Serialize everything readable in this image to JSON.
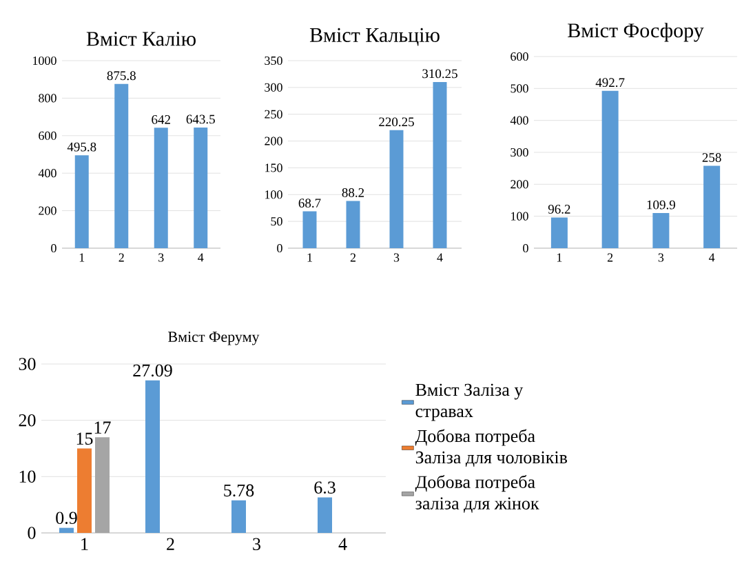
{
  "chart_data": [
    {
      "type": "bar",
      "title": "Вміст Калію",
      "categories": [
        "1",
        "2",
        "3",
        "4"
      ],
      "values": [
        495.8,
        875.8,
        642,
        643.5
      ],
      "color": "#5b9bd5",
      "ylim": [
        0,
        1000
      ],
      "yticks": [
        0,
        200,
        400,
        600,
        800,
        1000
      ],
      "grid": "y",
      "data_labels": true
    },
    {
      "type": "bar",
      "title": "Вміст Кальцію",
      "categories": [
        "1",
        "2",
        "3",
        "4"
      ],
      "values": [
        68.7,
        88.2,
        220.25,
        310.25
      ],
      "color": "#5b9bd5",
      "ylim": [
        0,
        350
      ],
      "yticks": [
        0,
        50,
        100,
        150,
        200,
        250,
        300,
        350
      ],
      "grid": "y",
      "data_labels": true
    },
    {
      "type": "bar",
      "title": "Вміст Фосфору",
      "categories": [
        "1",
        "2",
        "3",
        "4"
      ],
      "values": [
        96.2,
        492.7,
        109.9,
        258
      ],
      "color": "#5b9bd5",
      "ylim": [
        0,
        600
      ],
      "yticks": [
        0,
        100,
        200,
        300,
        400,
        500,
        600
      ],
      "grid": "y",
      "data_labels": true
    },
    {
      "type": "bar",
      "title": "Вміст Феруму",
      "categories": [
        "1",
        "2",
        "3",
        "4"
      ],
      "ylim": [
        0,
        30
      ],
      "yticks": [
        0,
        10,
        20,
        30
      ],
      "grid": "y",
      "data_labels": true,
      "legend": "right",
      "series": [
        {
          "name": "Вміст Заліза у стравах",
          "color": "#5b9bd5",
          "values": [
            0.9,
            27.09,
            5.78,
            6.3
          ]
        },
        {
          "name": "Добова потреба Заліза для чоловіків",
          "color": "#ed7d31",
          "values": [
            15,
            null,
            null,
            null
          ]
        },
        {
          "name": "Добова потреба заліза для жінок",
          "color": "#a5a5a5",
          "values": [
            17,
            null,
            null,
            null
          ]
        }
      ]
    }
  ]
}
